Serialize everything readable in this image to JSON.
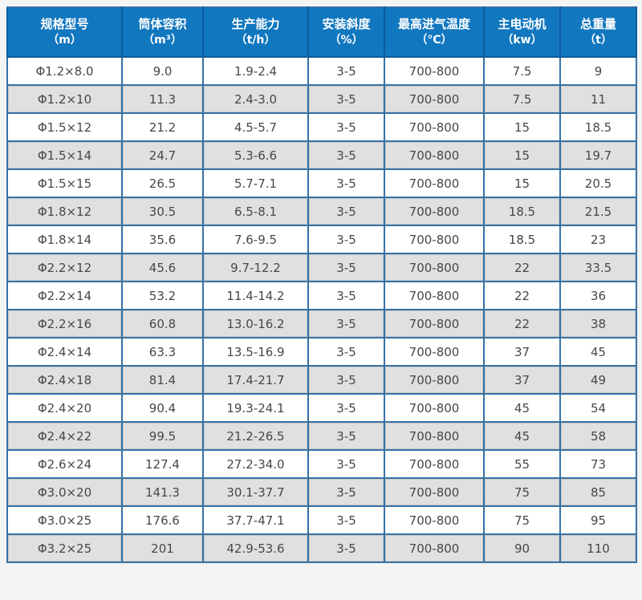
{
  "chart_data": {
    "type": "table",
    "columns": [
      {
        "title": "规格型号",
        "unit": "（m）"
      },
      {
        "title": "筒体容积",
        "unit": "（m³）"
      },
      {
        "title": "生产能力",
        "unit": "（t/h）"
      },
      {
        "title": "安装斜度",
        "unit": "（%）"
      },
      {
        "title": "最高进气温度",
        "unit": "（℃）"
      },
      {
        "title": "主电动机",
        "unit": "（kw）"
      },
      {
        "title": "总重量",
        "unit": "（t）"
      }
    ],
    "rows": [
      [
        "Φ1.2×8.0",
        "9.0",
        "1.9-2.4",
        "3-5",
        "700-800",
        "7.5",
        "9"
      ],
      [
        "Φ1.2×10",
        "11.3",
        "2.4-3.0",
        "3-5",
        "700-800",
        "7.5",
        "11"
      ],
      [
        "Φ1.5×12",
        "21.2",
        "4.5-5.7",
        "3-5",
        "700-800",
        "15",
        "18.5"
      ],
      [
        "Φ1.5×14",
        "24.7",
        "5.3-6.6",
        "3-5",
        "700-800",
        "15",
        "19.7"
      ],
      [
        "Φ1.5×15",
        "26.5",
        "5.7-7.1",
        "3-5",
        "700-800",
        "15",
        "20.5"
      ],
      [
        "Φ1.8×12",
        "30.5",
        "6.5-8.1",
        "3-5",
        "700-800",
        "18.5",
        "21.5"
      ],
      [
        "Φ1.8×14",
        "35.6",
        "7.6-9.5",
        "3-5",
        "700-800",
        "18.5",
        "23"
      ],
      [
        "Φ2.2×12",
        "45.6",
        "9.7-12.2",
        "3-5",
        "700-800",
        "22",
        "33.5"
      ],
      [
        "Φ2.2×14",
        "53.2",
        "11.4-14.2",
        "3-5",
        "700-800",
        "22",
        "36"
      ],
      [
        "Φ2.2×16",
        "60.8",
        "13.0-16.2",
        "3-5",
        "700-800",
        "22",
        "38"
      ],
      [
        "Φ2.4×14",
        "63.3",
        "13.5-16.9",
        "3-5",
        "700-800",
        "37",
        "45"
      ],
      [
        "Φ2.4×18",
        "81.4",
        "17.4-21.7",
        "3-5",
        "700-800",
        "37",
        "49"
      ],
      [
        "Φ2.4×20",
        "90.4",
        "19.3-24.1",
        "3-5",
        "700-800",
        "45",
        "54"
      ],
      [
        "Φ2.4×22",
        "99.5",
        "21.2-26.5",
        "3-5",
        "700-800",
        "45",
        "58"
      ],
      [
        "Φ2.6×24",
        "127.4",
        "27.2-34.0",
        "3-5",
        "700-800",
        "55",
        "73"
      ],
      [
        "Φ3.0×20",
        "141.3",
        "30.1-37.7",
        "3-5",
        "700-800",
        "75",
        "85"
      ],
      [
        "Φ3.0×25",
        "176.6",
        "37.7-47.1",
        "3-5",
        "700-800",
        "75",
        "95"
      ],
      [
        "Φ3.2×25",
        "201",
        "42.9-53.6",
        "3-5",
        "700-800",
        "90",
        "110"
      ]
    ],
    "colors": {
      "header_bg": "#1177bf",
      "header_border": "#0d5c9c",
      "header_text": "#ffffff",
      "grid_border": "#3672a5",
      "row_bg": "#ffffff",
      "row_alt_bg": "#e0e0e0",
      "body_text": "#474747",
      "page_bg": "#f4f4f4"
    },
    "layout": {
      "grid": true,
      "striped": true,
      "legend": false
    }
  }
}
